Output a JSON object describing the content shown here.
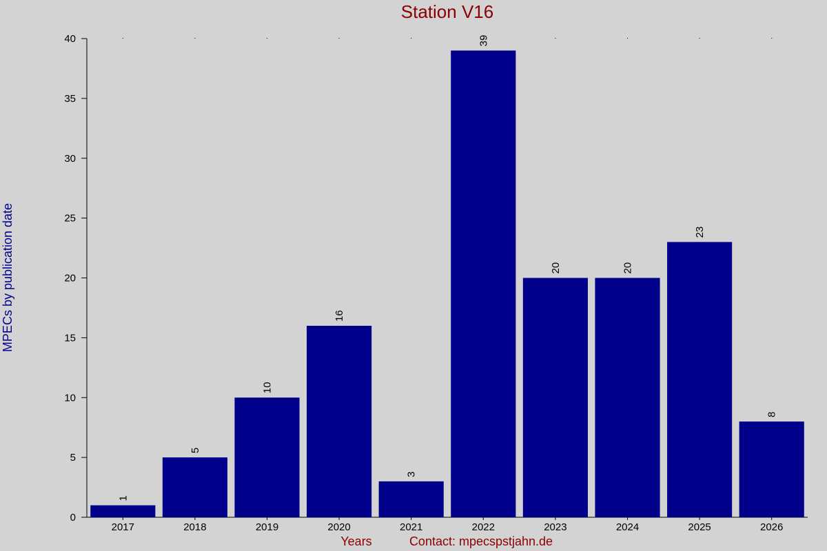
{
  "chart_data": {
    "type": "bar",
    "title": "Station V16",
    "xlabel": "Years",
    "ylabel": "MPECs by publication date",
    "footer": "Contact: mpecspstjahn.de",
    "categories": [
      "2017",
      "2018",
      "2019",
      "2020",
      "2021",
      "2022",
      "2023",
      "2024",
      "2025",
      "2026"
    ],
    "values": [
      1,
      5,
      10,
      16,
      3,
      39,
      20,
      20,
      23,
      8
    ],
    "ylim": [
      0,
      40
    ],
    "yticks": [
      0,
      5,
      10,
      15,
      20,
      25,
      30,
      35,
      40
    ],
    "grid": false,
    "legend": "none",
    "colors": {
      "bar": "#00008b",
      "title": "#8b0000",
      "ylabel": "#00008b",
      "xlabel": "#8b0000",
      "background": "#d3d3d3"
    }
  }
}
